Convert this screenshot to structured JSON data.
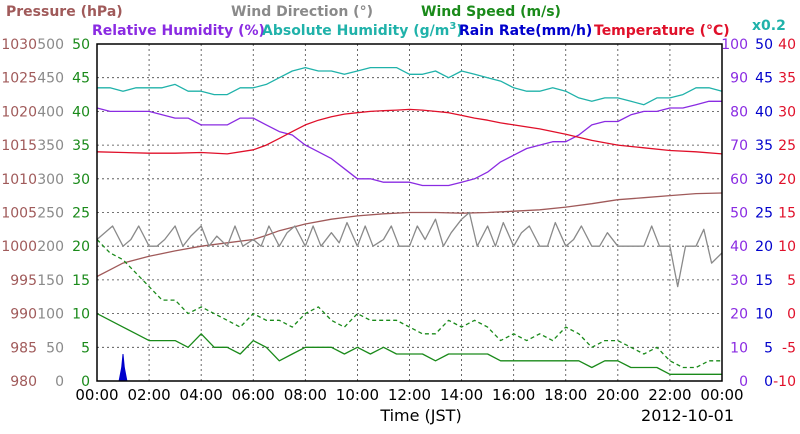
{
  "chart_data": {
    "type": "line",
    "header": {
      "row1": [
        {
          "text": "Pressure (hPa)",
          "color": "#a05a5a"
        },
        {
          "text": "Wind Direction (°)",
          "color": "#8a8a8a"
        },
        {
          "text": "Wind Speed (m/s)",
          "color": "#1a8a1a"
        }
      ],
      "row2": [
        {
          "text": "Relative Humidity (%)",
          "color": "#8a2be2"
        },
        {
          "text": "Absolute Humidity (g/m",
          "color": "#20b2aa"
        },
        {
          "text": "3",
          "color": "#20b2aa"
        },
        {
          "text": ")",
          "color": "#20b2aa"
        },
        {
          "text": "Rain Rate(mm/h)",
          "color": "#0000cc"
        },
        {
          "text": "Temperature (°C)",
          "color": "#e0102a"
        },
        {
          "text": "x0.2",
          "color": "#20b2aa"
        }
      ]
    },
    "xlabel": "Time (JST)",
    "date": "2012-10-01",
    "x_ticks": [
      "00:00",
      "02:00",
      "04:00",
      "06:00",
      "08:00",
      "10:00",
      "12:00",
      "14:00",
      "16:00",
      "18:00",
      "20:00",
      "22:00",
      "00:00"
    ],
    "axes": {
      "pressure": {
        "ticks": [
          "1030",
          "1025",
          "1020",
          "1015",
          "1010",
          "1005",
          "1000",
          "995",
          "990",
          "985",
          "980"
        ],
        "color": "#a05a5a",
        "range": [
          980,
          1030
        ]
      },
      "wind_direction": {
        "ticks": [
          "500",
          "450",
          "400",
          "350",
          "300",
          "250",
          "200",
          "150",
          "100",
          "50",
          "0"
        ],
        "color": "#8a8a8a",
        "range": [
          0,
          500
        ]
      },
      "wind_speed": {
        "ticks": [
          "50",
          "45",
          "40",
          "35",
          "30",
          "25",
          "20",
          "15",
          "10",
          "5",
          "0"
        ],
        "color": "#1a8a1a",
        "range": [
          0,
          50
        ]
      },
      "relative_humidity": {
        "ticks": [
          "100",
          "90",
          "80",
          "70",
          "60",
          "50",
          "40",
          "30",
          "20",
          "10",
          "0"
        ],
        "color": "#8a2be2",
        "range": [
          0,
          100
        ]
      },
      "rain_rate": {
        "ticks": [
          "50",
          "45",
          "40",
          "35",
          "30",
          "25",
          "20",
          "15",
          "10",
          "5",
          "0"
        ],
        "color": "#0000cc",
        "range": [
          0,
          50
        ]
      },
      "temperature": {
        "ticks": [
          "40",
          "35",
          "30",
          "25",
          "20",
          "15",
          "10",
          "5",
          "0",
          "-5",
          "-10"
        ],
        "color": "#e0102a",
        "range": [
          -10,
          40
        ]
      }
    },
    "x_range_hours": [
      0,
      24
    ],
    "grid": true,
    "series": [
      {
        "name": "Pressure (hPa)",
        "axis": "pressure",
        "color": "#a05a5a",
        "style": "solid",
        "x": [
          0,
          0.5,
          1,
          2,
          3,
          4,
          5,
          6,
          6.5,
          7,
          8,
          9,
          10,
          11,
          12,
          13,
          14,
          15,
          16,
          17,
          18,
          19,
          20,
          21,
          22,
          23,
          24
        ],
        "values": [
          995.5,
          996.5,
          997.5,
          998.5,
          999.3,
          1000,
          1000.5,
          1001,
          1001.6,
          1002.3,
          1003.3,
          1004,
          1004.5,
          1004.8,
          1005,
          1005,
          1004.9,
          1005,
          1005.2,
          1005.4,
          1005.8,
          1006.3,
          1006.9,
          1007.2,
          1007.5,
          1007.8,
          1007.9
        ]
      },
      {
        "name": "Absolute Humidity x0.2",
        "axis": "relative_humidity",
        "color": "#20b2aa",
        "style": "solid",
        "x": [
          0,
          0.5,
          1,
          1.5,
          2,
          2.5,
          3,
          3.5,
          4,
          4.5,
          5,
          5.5,
          6,
          6.5,
          7,
          7.5,
          8,
          8.5,
          9,
          9.5,
          10,
          10.5,
          11,
          11.5,
          12,
          12.5,
          13,
          13.5,
          14,
          14.5,
          15,
          15.5,
          16,
          16.5,
          17,
          17.5,
          18,
          18.5,
          19,
          19.5,
          20,
          20.5,
          21,
          21.5,
          22,
          22.5,
          23,
          23.5,
          24
        ],
        "values": [
          87,
          87,
          86,
          87,
          87,
          87,
          88,
          86,
          86,
          85,
          85,
          87,
          87,
          88,
          90,
          92,
          93,
          92,
          92,
          91,
          92,
          93,
          93,
          93,
          91,
          91,
          92,
          90,
          92,
          91,
          90,
          89,
          87,
          86,
          86,
          87,
          86,
          84,
          83,
          84,
          84,
          83,
          82,
          84,
          84,
          85,
          87,
          87,
          86
        ]
      },
      {
        "name": "Relative Humidity (%)",
        "axis": "relative_humidity",
        "color": "#8a2be2",
        "style": "solid",
        "x": [
          0,
          0.5,
          1,
          1.5,
          2,
          2.5,
          3,
          3.5,
          4,
          4.5,
          5,
          5.5,
          6,
          6.5,
          7,
          7.5,
          8,
          8.5,
          9,
          9.5,
          10,
          10.5,
          11,
          11.5,
          12,
          12.5,
          13,
          13.5,
          14,
          14.5,
          15,
          15.5,
          16,
          16.5,
          17,
          17.5,
          18,
          18.5,
          19,
          19.5,
          20,
          20.5,
          21,
          21.5,
          22,
          22.5,
          23,
          23.5,
          24
        ],
        "values": [
          81,
          80,
          80,
          80,
          80,
          79,
          78,
          78,
          76,
          76,
          76,
          78,
          78,
          76,
          74,
          73,
          70,
          68,
          66,
          63,
          60,
          60,
          59,
          59,
          59,
          58,
          58,
          58,
          59,
          60,
          62,
          65,
          67,
          69,
          70,
          71,
          71,
          73,
          76,
          77,
          77,
          79,
          80,
          80,
          81,
          81,
          82,
          83,
          83
        ]
      },
      {
        "name": "Temperature (°C)",
        "axis": "temperature",
        "color": "#e0102a",
        "style": "solid",
        "x": [
          0,
          1,
          2,
          3,
          4,
          5,
          6,
          6.5,
          7,
          7.5,
          8,
          8.5,
          9,
          9.5,
          10,
          10.5,
          11,
          11.5,
          12,
          12.5,
          13,
          13.5,
          14,
          14.5,
          15,
          15.5,
          16,
          17,
          18,
          19,
          20,
          21,
          22,
          23,
          24
        ],
        "values": [
          24,
          23.9,
          23.8,
          23.8,
          23.9,
          23.7,
          24.3,
          25,
          26,
          27,
          28,
          28.7,
          29.2,
          29.6,
          29.8,
          30,
          30.1,
          30.2,
          30.3,
          30.2,
          30,
          29.8,
          29.4,
          29,
          28.7,
          28.3,
          28,
          27.4,
          26.6,
          25.7,
          25,
          24.6,
          24.2,
          24,
          23.7
        ]
      },
      {
        "name": "Wind Direction (°)",
        "axis": "wind_direction",
        "color": "#8a8a8a",
        "style": "solid",
        "x": [
          0,
          0.3,
          0.6,
          1,
          1.3,
          1.6,
          2,
          2.3,
          2.6,
          3,
          3.3,
          3.6,
          4,
          4.3,
          4.6,
          5,
          5.3,
          5.6,
          6,
          6.3,
          6.6,
          7,
          7.3,
          7.6,
          8,
          8.3,
          8.6,
          9,
          9.3,
          9.6,
          10,
          10.3,
          10.6,
          11,
          11.3,
          11.6,
          12,
          12.3,
          12.6,
          13,
          13.3,
          13.6,
          14,
          14.3,
          14.6,
          15,
          15.3,
          15.6,
          16,
          16.3,
          16.6,
          17,
          17.3,
          17.6,
          18,
          18.3,
          18.6,
          19,
          19.3,
          19.6,
          20,
          20.3,
          20.6,
          21,
          21.3,
          21.6,
          22,
          22.3,
          22.6,
          23,
          23.3,
          23.6,
          24
        ],
        "values": [
          210,
          220,
          230,
          200,
          210,
          230,
          200,
          200,
          210,
          230,
          200,
          215,
          230,
          200,
          215,
          200,
          230,
          200,
          210,
          200,
          230,
          200,
          220,
          230,
          200,
          230,
          200,
          220,
          205,
          235,
          200,
          230,
          200,
          210,
          230,
          200,
          200,
          230,
          210,
          240,
          200,
          220,
          240,
          250,
          200,
          230,
          200,
          235,
          200,
          220,
          230,
          200,
          200,
          235,
          200,
          210,
          230,
          200,
          200,
          220,
          200,
          200,
          200,
          200,
          230,
          200,
          200,
          140,
          200,
          200,
          225,
          175,
          190
        ]
      },
      {
        "name": "Wind Speed (m/s) max",
        "axis": "wind_speed",
        "color": "#1a8a1a",
        "style": "dashed",
        "x": [
          0,
          0.5,
          1,
          1.5,
          2,
          2.5,
          3,
          3.5,
          4,
          4.5,
          5,
          5.5,
          6,
          6.5,
          7,
          7.5,
          8,
          8.5,
          9,
          9.5,
          10,
          10.5,
          11,
          11.5,
          12,
          12.5,
          13,
          13.5,
          14,
          14.5,
          15,
          15.5,
          16,
          16.5,
          17,
          17.5,
          18,
          18.5,
          19,
          19.5,
          20,
          20.5,
          21,
          21.5,
          22,
          22.5,
          23,
          23.5,
          24
        ],
        "values": [
          21,
          19,
          18,
          16,
          14,
          12,
          12,
          10,
          11,
          10,
          9,
          8,
          10,
          9,
          9,
          8,
          10,
          11,
          9,
          8,
          10,
          9,
          9,
          9,
          8,
          7,
          7,
          9,
          8,
          9,
          8,
          6,
          7,
          6,
          7,
          6,
          8,
          7,
          5,
          6,
          6,
          5,
          4,
          5,
          3,
          2,
          2,
          3,
          3
        ]
      },
      {
        "name": "Wind Speed (m/s) mean",
        "axis": "wind_speed",
        "color": "#1a8a1a",
        "style": "solid",
        "x": [
          0,
          0.5,
          1,
          1.5,
          2,
          2.5,
          3,
          3.5,
          4,
          4.5,
          5,
          5.5,
          6,
          6.5,
          7,
          7.5,
          8,
          8.5,
          9,
          9.5,
          10,
          10.5,
          11,
          11.5,
          12,
          12.5,
          13,
          13.5,
          14,
          14.5,
          15,
          15.5,
          16,
          16.5,
          17,
          17.5,
          18,
          18.5,
          19,
          19.5,
          20,
          20.5,
          21,
          21.5,
          22,
          22.5,
          23,
          23.5,
          24
        ],
        "values": [
          10,
          9,
          8,
          7,
          6,
          6,
          6,
          5,
          7,
          5,
          5,
          4,
          6,
          5,
          3,
          4,
          5,
          5,
          5,
          4,
          5,
          4,
          5,
          4,
          4,
          4,
          3,
          4,
          4,
          4,
          4,
          3,
          3,
          3,
          3,
          3,
          3,
          3,
          2,
          3,
          3,
          2,
          2,
          2,
          1,
          1,
          1,
          1,
          1
        ]
      },
      {
        "name": "Rain Rate(mm/h)",
        "axis": "rain_rate",
        "color": "#0000cc",
        "style": "area",
        "x": [
          0.85,
          0.95,
          1.0,
          1.05,
          1.15
        ],
        "values": [
          0,
          2,
          4,
          2,
          0
        ]
      }
    ]
  }
}
